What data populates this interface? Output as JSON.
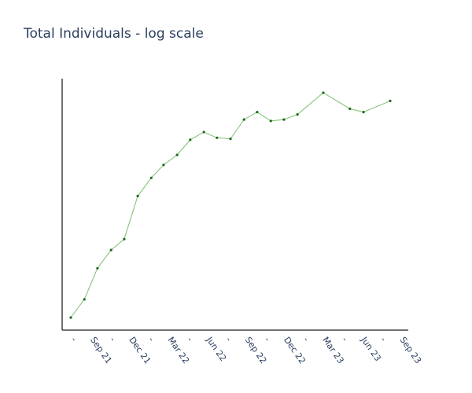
{
  "chart_data": {
    "type": "line",
    "title": "Total Individuals - log scale",
    "xlabel": "",
    "ylabel": "",
    "y_scale": "log",
    "y_tick_labels_visible": false,
    "grid": false,
    "legend": "none",
    "x_tick_labels": [
      "",
      "Sep 21",
      "",
      "Dec 21",
      "",
      "Mar 22",
      "",
      "Jun 22",
      "",
      "Sep 22",
      "",
      "Dec 22",
      "",
      "Mar 23",
      "",
      "Jun 23",
      "",
      "Sep 23"
    ],
    "x": [
      "2021-08-01",
      "2021-09-01",
      "2021-10-01",
      "2021-11-01",
      "2021-12-01",
      "2022-01-01",
      "2022-02-01",
      "2022-03-01",
      "2022-04-01",
      "2022-05-01",
      "2022-06-01",
      "2022-07-01",
      "2022-08-01",
      "2022-09-01",
      "2022-10-01",
      "2022-11-01",
      "2022-12-01",
      "2023-01-01",
      "2023-03-01",
      "2023-05-01",
      "2023-06-01",
      "2023-08-01"
    ],
    "series": [
      {
        "color": "#7cbf6f",
        "marker_color": "#1a6b1a",
        "values": [
          4,
          6,
          12,
          18,
          23,
          60,
          90,
          120,
          150,
          210,
          250,
          220,
          215,
          330,
          390,
          320,
          330,
          370,
          600,
          420,
          390,
          500
        ]
      }
    ]
  }
}
